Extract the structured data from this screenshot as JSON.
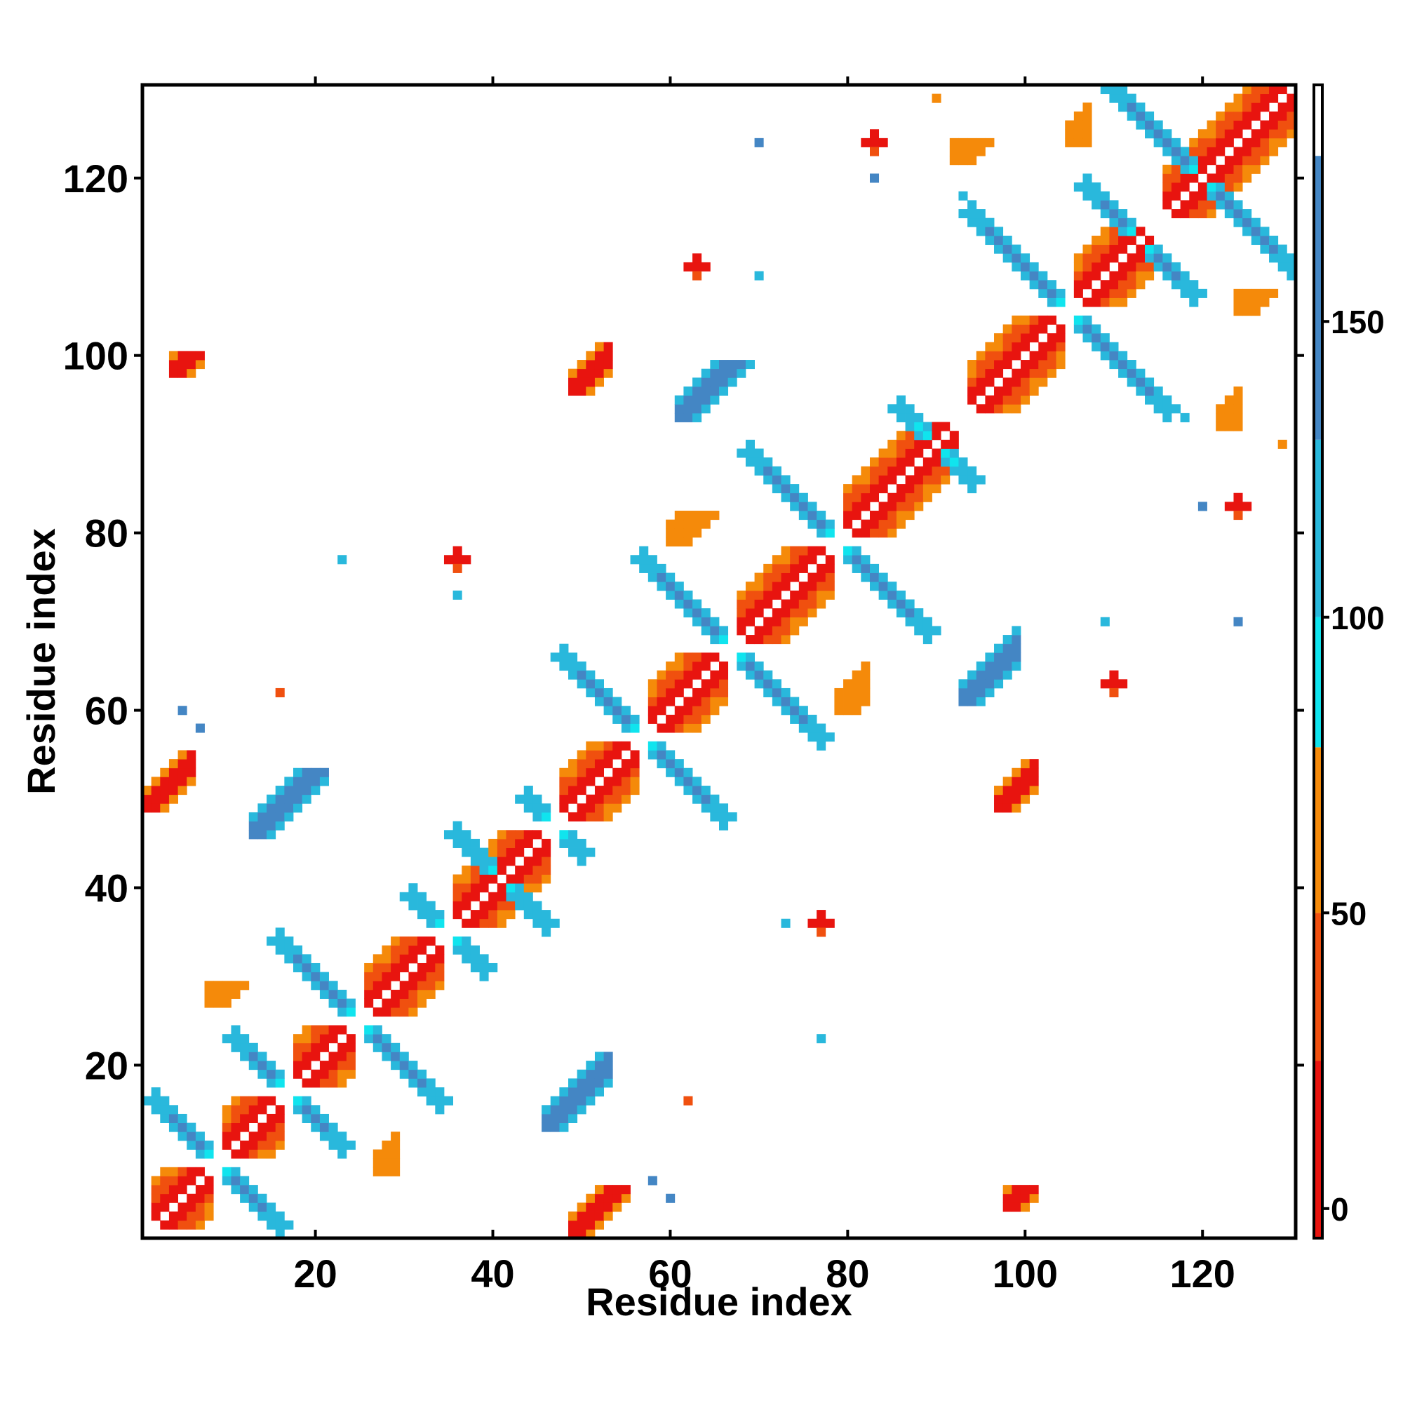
{
  "chart_data": {
    "type": "heatmap",
    "title": "",
    "xlabel": "Residue index",
    "ylabel": "Residue index",
    "xlim": [
      0.5,
      130.5
    ],
    "ylim": [
      0.5,
      130.5
    ],
    "x_ticks": [
      20,
      40,
      60,
      80,
      100,
      120
    ],
    "y_ticks": [
      20,
      40,
      60,
      80,
      100,
      120
    ],
    "grid": false,
    "colorbar": {
      "range": [
        -5,
        190
      ],
      "ticks": [
        0,
        50,
        100,
        150
      ],
      "bands": [
        {
          "from": -5,
          "to": 25,
          "color": "#e8140f"
        },
        {
          "from": 25,
          "to": 50,
          "color": "#f0500f"
        },
        {
          "from": 50,
          "to": 78,
          "color": "#f58a0a"
        },
        {
          "from": 78,
          "to": 100,
          "color": "#10e4ee"
        },
        {
          "from": 100,
          "to": 130,
          "color": "#29b8dc"
        },
        {
          "from": 130,
          "to": 178,
          "color": "#4486c4"
        },
        {
          "from": 178,
          "to": 190,
          "color": "#ffffff"
        }
      ]
    },
    "palette": [
      "#e8140f",
      "#f0500f",
      "#f58a0a",
      "#10e4ee",
      "#29b8dc",
      "#4486c4"
    ],
    "helix_segments": [
      [
        2,
        8
      ],
      [
        10,
        16
      ],
      [
        18,
        24
      ],
      [
        26,
        34
      ],
      [
        36,
        46
      ],
      [
        48,
        56
      ],
      [
        58,
        66
      ],
      [
        68,
        78
      ],
      [
        80,
        92
      ],
      [
        94,
        104
      ],
      [
        106,
        114
      ],
      [
        116,
        130
      ]
    ],
    "cross_blocks": [
      {
        "center": [
          9,
          9
        ],
        "arm": 7,
        "class": 5
      },
      {
        "center": [
          17,
          17
        ],
        "arm": 6,
        "class": 5
      },
      {
        "center": [
          25,
          25
        ],
        "arm": 9,
        "class": 5
      },
      {
        "center": [
          35,
          35
        ],
        "arm": 4,
        "class": 4
      },
      {
        "center": [
          41,
          41
        ],
        "arm": 5,
        "class": 4
      },
      {
        "center": [
          47,
          47
        ],
        "arm": 3,
        "class": 4
      },
      {
        "center": [
          57,
          57
        ],
        "arm": 9,
        "class": 5
      },
      {
        "center": [
          67,
          67
        ],
        "arm": 10,
        "class": 5
      },
      {
        "center": [
          79,
          79
        ],
        "arm": 10,
        "class": 5
      },
      {
        "center": [
          90,
          90
        ],
        "arm": 4,
        "class": 3
      },
      {
        "center": [
          105,
          105
        ],
        "arm": 11,
        "class": 5
      },
      {
        "center": [
          113,
          113
        ],
        "arm": 6,
        "class": 5
      },
      {
        "center": [
          120,
          120
        ],
        "arm": 10,
        "class": 5
      }
    ],
    "off_diagonal_patches": [
      {
        "x": [
          1,
          6
        ],
        "y": [
          49,
          55
        ],
        "class": 0
      },
      {
        "x": [
          49,
          55
        ],
        "y": [
          1,
          6
        ],
        "class": 0
      },
      {
        "x": [
          4,
          7
        ],
        "y": [
          98,
          100
        ],
        "class": 0
      },
      {
        "x": [
          49,
          53
        ],
        "y": [
          96,
          101
        ],
        "class": 0
      },
      {
        "x": [
          97,
          101
        ],
        "y": [
          49,
          54
        ],
        "class": 0
      },
      {
        "x": [
          98,
          101
        ],
        "y": [
          4,
          6
        ],
        "class": 0
      },
      {
        "x": [
          13,
          21
        ],
        "y": [
          46,
          53
        ],
        "class": 5
      },
      {
        "x": [
          46,
          53
        ],
        "y": [
          13,
          21
        ],
        "class": 5
      },
      {
        "x": [
          61,
          70
        ],
        "y": [
          93,
          99
        ],
        "class": 5
      },
      {
        "x": [
          93,
          99
        ],
        "y": [
          61,
          70
        ],
        "class": 5
      },
      {
        "x": [
          60,
          66
        ],
        "y": [
          79,
          82
        ],
        "class": 2
      },
      {
        "x": [
          79,
          82
        ],
        "y": [
          60,
          66
        ],
        "class": 2
      },
      {
        "x": [
          27,
          29
        ],
        "y": [
          8,
          13
        ],
        "class": 2
      },
      {
        "x": [
          8,
          13
        ],
        "y": [
          27,
          29
        ],
        "class": 2
      },
      {
        "x": [
          124,
          128
        ],
        "y": [
          105,
          107
        ],
        "class": 2
      },
      {
        "x": [
          105,
          107
        ],
        "y": [
          124,
          128
        ],
        "class": 2
      },
      {
        "x": [
          122,
          124
        ],
        "y": [
          92,
          96
        ],
        "class": 2
      },
      {
        "x": [
          92,
          96
        ],
        "y": [
          122,
          124
        ],
        "class": 2
      }
    ],
    "isolated_points": [
      {
        "x": 36,
        "y": 77,
        "class": 0
      },
      {
        "x": 77,
        "y": 36,
        "class": 0
      },
      {
        "x": 83,
        "y": 124,
        "class": 0
      },
      {
        "x": 124,
        "y": 83,
        "class": 0
      },
      {
        "x": 23,
        "y": 77,
        "class": 4
      },
      {
        "x": 77,
        "y": 23,
        "class": 4
      },
      {
        "x": 70,
        "y": 124,
        "class": 5
      },
      {
        "x": 124,
        "y": 70,
        "class": 5
      },
      {
        "x": 83,
        "y": 120,
        "class": 5
      },
      {
        "x": 120,
        "y": 83,
        "class": 5
      },
      {
        "x": 36,
        "y": 73,
        "class": 4
      },
      {
        "x": 73,
        "y": 36,
        "class": 4
      },
      {
        "x": 109,
        "y": 70,
        "class": 4
      },
      {
        "x": 70,
        "y": 109,
        "class": 4
      },
      {
        "x": 5,
        "y": 60,
        "class": 5
      },
      {
        "x": 60,
        "y": 5,
        "class": 5
      },
      {
        "x": 7,
        "y": 58,
        "class": 5
      },
      {
        "x": 58,
        "y": 7,
        "class": 5
      },
      {
        "x": 90,
        "y": 129,
        "class": 2
      },
      {
        "x": 129,
        "y": 90,
        "class": 2
      },
      {
        "x": 110,
        "y": 63,
        "class": 0
      },
      {
        "x": 63,
        "y": 110,
        "class": 0
      },
      {
        "x": 118,
        "y": 93,
        "class": 4
      },
      {
        "x": 93,
        "y": 118,
        "class": 4
      },
      {
        "x": 16,
        "y": 62,
        "class": 1
      },
      {
        "x": 62,
        "y": 16,
        "class": 1
      }
    ]
  }
}
